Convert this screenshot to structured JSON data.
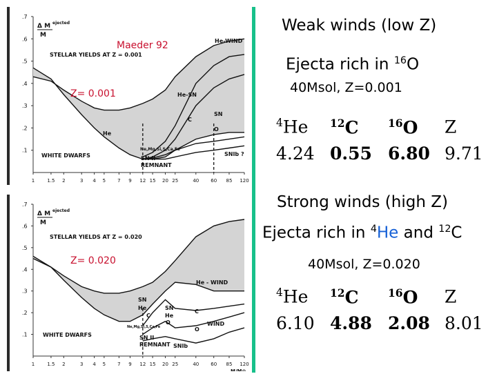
{
  "colors": {
    "accent_green": "#17c08a",
    "label_red": "#c8102e",
    "he_blue": "#1560d6"
  },
  "chart_data": [
    {
      "type": "area",
      "id": "top",
      "title": "STELLAR YIELDS AT Z = 0.001",
      "ylabel_prefix": "Δ M",
      "ylabel_sup": "ejected",
      "ylabel_den": "M",
      "xlabel": "",
      "xscale": "log",
      "xlim": [
        1,
        120
      ],
      "ylim": [
        0,
        0.7
      ],
      "xticks": [
        1,
        1.5,
        2,
        3,
        4,
        5,
        7,
        9,
        12,
        15,
        20,
        25,
        40,
        60,
        85,
        120
      ],
      "yticks": [
        0.1,
        0.2,
        0.3,
        0.4,
        0.5,
        0.6,
        0.7
      ],
      "ytick_labels": [
        ".1",
        ".2",
        ".3",
        ".4",
        ".5",
        ".6",
        ".7"
      ],
      "annotations": [
        "Maeder 92",
        "Z= 0.001",
        "He-WIND",
        "He-SN",
        "SN",
        "C",
        "O",
        "He",
        "WHITE DWARFS",
        "Ne,Mg,Si,S,Ca,Fe",
        "SN II",
        "REMNANT",
        "SNIb ?"
      ],
      "series": [
        {
          "x": [
            1,
            1.5,
            2,
            3,
            4,
            5,
            7,
            9,
            12,
            15,
            20,
            25,
            40,
            60,
            85,
            120
          ],
          "y": [
            0.43,
            0.41,
            0.37,
            0.32,
            0.29,
            0.28,
            0.28,
            0.29,
            0.31,
            0.33,
            0.37,
            0.43,
            0.52,
            0.57,
            0.59,
            0.6
          ]
        },
        {
          "x": [
            1,
            1.5,
            2,
            3,
            4,
            5,
            7,
            9,
            12,
            15,
            20,
            25,
            40,
            60,
            85,
            120
          ],
          "y": [
            0.47,
            0.42,
            0.35,
            0.26,
            0.2,
            0.16,
            0.11,
            0.08,
            0.06,
            0.06,
            0.07,
            0.1,
            0.15,
            0.17,
            0.18,
            0.18
          ]
        },
        {
          "x": [
            12,
            15,
            20,
            25,
            40,
            60,
            85,
            120
          ],
          "y": [
            0.07,
            0.09,
            0.14,
            0.21,
            0.4,
            0.48,
            0.52,
            0.53
          ]
        },
        {
          "x": [
            12,
            15,
            20,
            25,
            40,
            60,
            85,
            120
          ],
          "y": [
            0.06,
            0.07,
            0.1,
            0.15,
            0.3,
            0.38,
            0.42,
            0.44
          ]
        },
        {
          "x": [
            12,
            15,
            20,
            25,
            40,
            60,
            85,
            120
          ],
          "y": [
            0.06,
            0.065,
            0.08,
            0.1,
            0.13,
            0.14,
            0.15,
            0.16
          ]
        },
        {
          "x": [
            12,
            15,
            20,
            25,
            40,
            60,
            85,
            120
          ],
          "y": [
            0.06,
            0.06,
            0.06,
            0.07,
            0.09,
            0.1,
            0.11,
            0.12
          ]
        }
      ],
      "vlines": [
        12,
        60
      ]
    },
    {
      "type": "area",
      "id": "bottom",
      "title": "STELLAR YIELDS AT Z = 0.020",
      "ylabel_prefix": "Δ M",
      "ylabel_sup": "ejected",
      "ylabel_den": "M",
      "xlabel": "M/M⊙",
      "xscale": "log",
      "xlim": [
        1,
        120
      ],
      "ylim": [
        0,
        0.7
      ],
      "xticks": [
        1,
        1.5,
        2,
        3,
        4,
        5,
        7,
        9,
        12,
        15,
        20,
        25,
        40,
        60,
        85,
        120
      ],
      "yticks": [
        0.1,
        0.2,
        0.3,
        0.4,
        0.5,
        0.6,
        0.7
      ],
      "ytick_labels": [
        ".1",
        ".2",
        ".3",
        ".4",
        ".5",
        ".6",
        ".7"
      ],
      "annotations": [
        "Z= 0.020",
        "He - WIND",
        "SN",
        "He",
        "C",
        "O",
        "Ne,Mg,Si,S,Ca,Fe",
        "WIND",
        "WHITE DWARFS",
        "SN II",
        "REMNANT",
        "SNIb"
      ],
      "series": [
        {
          "x": [
            1,
            1.5,
            2,
            3,
            4,
            5,
            7,
            9,
            12,
            15,
            20,
            25,
            40,
            60,
            85,
            120
          ],
          "y": [
            0.45,
            0.41,
            0.37,
            0.32,
            0.3,
            0.29,
            0.29,
            0.3,
            0.32,
            0.34,
            0.39,
            0.44,
            0.55,
            0.6,
            0.62,
            0.63
          ]
        },
        {
          "x": [
            1,
            1.5,
            2,
            3,
            4,
            5,
            7,
            9,
            12,
            15,
            20,
            25,
            40,
            60,
            85,
            120
          ],
          "y": [
            0.46,
            0.41,
            0.35,
            0.27,
            0.22,
            0.19,
            0.16,
            0.16,
            0.19,
            0.24,
            0.3,
            0.34,
            0.33,
            0.3,
            0.3,
            0.3
          ]
        },
        {
          "x": [
            12,
            15,
            20,
            25,
            40,
            60,
            85,
            120
          ],
          "y": [
            0.14,
            0.2,
            0.26,
            0.22,
            0.21,
            0.22,
            0.23,
            0.24
          ]
        },
        {
          "x": [
            12,
            15,
            20,
            25,
            40,
            60,
            85,
            120
          ],
          "y": [
            0.1,
            0.13,
            0.16,
            0.13,
            0.14,
            0.16,
            0.18,
            0.2
          ]
        },
        {
          "x": [
            12,
            15,
            20,
            25,
            40,
            60,
            85,
            120
          ],
          "y": [
            0.07,
            0.08,
            0.09,
            0.08,
            0.06,
            0.08,
            0.11,
            0.13
          ]
        }
      ],
      "vlines": [
        12
      ]
    }
  ],
  "weak": {
    "title": "Weak winds (low Z)",
    "subtitle_prefix": "Ejecta rich in ",
    "subtitle_sup": "16",
    "subtitle_el": "O",
    "model": "40Msol, Z=0.001",
    "table": {
      "headers": [
        {
          "sup": "4",
          "el": "He"
        },
        {
          "sup": "12",
          "el": "C"
        },
        {
          "sup": "16",
          "el": "O"
        },
        {
          "sup": "",
          "el": "Z"
        }
      ],
      "values": [
        "4.24",
        "0.55",
        "6.80",
        "9.71"
      ]
    }
  },
  "strong": {
    "title": "Strong winds (high Z)",
    "subtitle_prefix": "Ejecta rich in ",
    "subtitle_sup1": "4",
    "subtitle_el1": "He",
    "subtitle_mid": " and ",
    "subtitle_sup2": "12",
    "subtitle_el2": "C",
    "model": "40Msol, Z=0.020",
    "table": {
      "headers": [
        {
          "sup": "4",
          "el": "He"
        },
        {
          "sup": "12",
          "el": "C"
        },
        {
          "sup": "16",
          "el": "O"
        },
        {
          "sup": "",
          "el": "Z"
        }
      ],
      "values": [
        "6.10",
        "4.88",
        "2.08",
        "8.01"
      ]
    }
  }
}
